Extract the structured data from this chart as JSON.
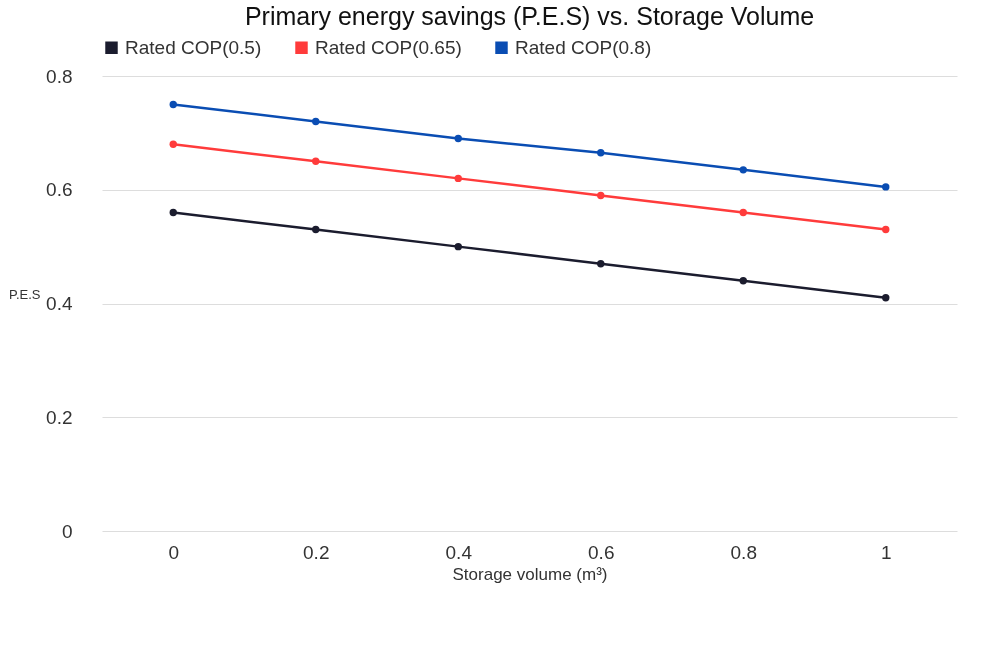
{
  "chart_data": {
    "type": "line",
    "title": "Primary energy savings (P.E.S) vs. Storage Volume",
    "xlabel": "Storage volume (m³)",
    "ylabel": "P.E.S",
    "categories": [
      "0",
      "0.2",
      "0.4",
      "0.6",
      "0.8",
      "1"
    ],
    "series": [
      {
        "name": "Rated COP(0.5)",
        "color": "#1b1c2e",
        "values": [
          0.56,
          0.53,
          0.5,
          0.47,
          0.44,
          0.41
        ]
      },
      {
        "name": "Rated COP(0.65)",
        "color": "#ff3b3b",
        "values": [
          0.68,
          0.65,
          0.62,
          0.59,
          0.56,
          0.53
        ]
      },
      {
        "name": "Rated COP(0.8)",
        "color": "#0a4db3",
        "values": [
          0.75,
          0.72,
          0.69,
          0.665,
          0.635,
          0.605
        ]
      }
    ],
    "ylim": [
      0,
      0.8
    ],
    "yticks": [
      0,
      0.2,
      0.4,
      0.6,
      0.8
    ],
    "grid": "y",
    "legend": "top",
    "marker": "circle",
    "line_style": "solid"
  }
}
